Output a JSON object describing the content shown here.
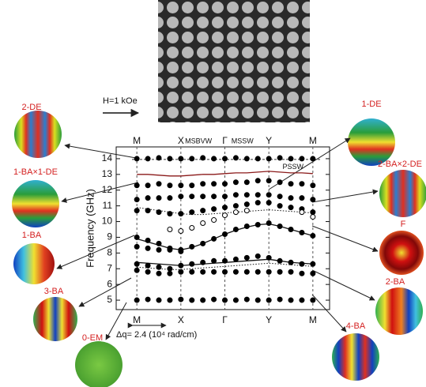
{
  "chart_data": {
    "type": "scatter",
    "y_label": "Frequency (GHz)",
    "field_label": "H=1 kOe",
    "scale_label": "Δq= 2.4 (10⁴ rad/cm)",
    "annotation": {
      "text": "PSSW",
      "x": 3.55,
      "y": 13.45
    },
    "xlim": [
      -0.47,
      4.38
    ],
    "ylim": [
      4.4,
      14.75
    ],
    "yticks": [
      5,
      6,
      7,
      8,
      9,
      10,
      11,
      12,
      13,
      14
    ],
    "xticks": [
      {
        "value": 0,
        "label": "M"
      },
      {
        "value": 1,
        "label": "X"
      },
      {
        "value": 2,
        "label": "Γ"
      },
      {
        "value": 3,
        "label": "Y"
      },
      {
        "value": 4,
        "label": "M"
      }
    ],
    "top_labels": [
      {
        "value": 0,
        "label": "M"
      },
      {
        "value": 1,
        "label": "X"
      },
      {
        "value": 1.4,
        "label": "MSBVW"
      },
      {
        "value": 2,
        "label": "Γ"
      },
      {
        "value": 2.4,
        "label": "MSSW"
      },
      {
        "value": 3,
        "label": "Y"
      },
      {
        "value": 4,
        "label": "M"
      }
    ],
    "grid": true,
    "x": [
      0,
      0.25,
      0.5,
      0.75,
      1,
      1.25,
      1.5,
      1.75,
      2,
      2.25,
      2.5,
      2.75,
      3,
      3.25,
      3.5,
      3.75,
      4
    ],
    "series": [
      {
        "color": "#8b1a1a",
        "style": "solid",
        "values": [
          13.0,
          13.0,
          12.95,
          12.9,
          12.9,
          12.95,
          13.0,
          13.0,
          13.05,
          13.1,
          13.1,
          13.15,
          13.2,
          13.15,
          13.1,
          13.1,
          13.05
        ]
      },
      {
        "color": "#111111",
        "style": "solid",
        "values": [
          8.9,
          8.7,
          8.5,
          8.3,
          8.2,
          8.35,
          8.6,
          8.9,
          9.2,
          9.45,
          9.65,
          9.8,
          9.85,
          9.7,
          9.5,
          9.3,
          9.1
        ]
      },
      {
        "color": "#111111",
        "style": "solid",
        "values": [
          7.4,
          7.35,
          7.3,
          7.25,
          7.2,
          7.25,
          7.3,
          7.35,
          7.4,
          7.45,
          7.5,
          7.55,
          7.6,
          7.5,
          7.4,
          7.35,
          7.3
        ]
      },
      {
        "color": "#111111",
        "style": "dotted",
        "values": [
          10.9,
          10.8,
          10.7,
          10.6,
          10.5,
          10.45,
          10.45,
          10.5,
          10.55,
          10.6,
          10.65,
          10.7,
          10.75,
          10.7,
          10.65,
          10.6,
          10.55
        ]
      },
      {
        "color": "#111111",
        "style": "dotted",
        "values": [
          7.1,
          7.05,
          7.0,
          6.95,
          6.95,
          7.0,
          7.05,
          7.1,
          7.15,
          7.2,
          7.25,
          7.3,
          7.35,
          7.3,
          7.25,
          7.2,
          7.15
        ]
      },
      {
        "color": "#000000",
        "marker": "filled",
        "values": [
          5.0,
          5.05,
          5.0,
          5.0,
          5.05,
          5.0,
          5.0,
          5.05,
          5.0,
          5.0,
          5.05,
          5.0,
          5.0,
          5.05,
          5.0,
          5.0,
          5.0
        ]
      },
      {
        "color": "#000000",
        "marker": "filled",
        "values": [
          6.9,
          6.8,
          6.7,
          6.7,
          6.8,
          6.8,
          6.8,
          6.8,
          6.8,
          6.8,
          6.8,
          6.8,
          6.8,
          6.8,
          6.8,
          6.7,
          6.7
        ]
      },
      {
        "color": "#000000",
        "marker": "filled",
        "values": [
          7.3,
          7.2,
          7.1,
          7.0,
          7.2,
          7.3,
          7.4,
          7.5,
          7.5,
          7.6,
          7.7,
          7.8,
          7.7,
          7.5,
          7.4,
          7.3,
          7.3
        ]
      },
      {
        "color": "#000000",
        "marker": "filled",
        "values": [
          8.4,
          8.3,
          8.2,
          8.2,
          8.2,
          8.4,
          8.6,
          8.9,
          9.2,
          9.5,
          9.7,
          9.8,
          9.9,
          9.7,
          9.5,
          9.3,
          9.1
        ]
      },
      {
        "color": "#000000",
        "marker": "filled",
        "values": [
          9.0,
          8.8,
          8.6,
          8.3,
          8.1,
          null,
          null,
          null,
          null,
          null,
          null,
          null,
          null,
          null,
          null,
          null,
          null
        ]
      },
      {
        "color": "#000000",
        "marker": "filled",
        "values": [
          10.7,
          10.7,
          10.6,
          10.5,
          10.5,
          10.6,
          10.7,
          10.8,
          10.9,
          11.0,
          11.1,
          11.2,
          11.2,
          11.0,
          10.9,
          10.8,
          10.6
        ]
      },
      {
        "color": "#000000",
        "marker": "filled",
        "values": [
          11.4,
          11.5,
          11.5,
          11.5,
          11.6,
          11.6,
          11.6,
          11.6,
          11.6,
          11.7,
          11.7,
          11.7,
          11.7,
          11.6,
          11.5,
          11.5,
          11.4
        ]
      },
      {
        "color": "#000000",
        "marker": "filled",
        "values": [
          12.3,
          12.3,
          12.4,
          12.3,
          12.3,
          12.3,
          12.4,
          12.4,
          12.4,
          12.5,
          12.5,
          12.6,
          12.6,
          12.5,
          12.4,
          12.4,
          12.3
        ]
      },
      {
        "color": "#000000",
        "marker": "filled",
        "values": [
          14.0,
          14.0,
          14.05,
          14.0,
          14.0,
          14.0,
          14.05,
          14.0,
          14.0,
          14.05,
          14.0,
          14.0,
          14.0,
          14.05,
          14.0,
          14.0,
          14.0
        ]
      },
      {
        "color": "#000000",
        "marker": "open",
        "values": [
          null,
          null,
          null,
          9.5,
          9.4,
          9.6,
          9.9,
          10.1,
          10.4,
          10.6,
          10.7,
          null,
          null,
          null,
          null,
          10.6,
          10.3
        ]
      }
    ]
  },
  "modes": [
    {
      "label": "2-DE"
    },
    {
      "label": "1-BA×1-DE"
    },
    {
      "label": "1-BA"
    },
    {
      "label": "3-BA"
    },
    {
      "label": "0-EM"
    },
    {
      "label": "1-DE"
    },
    {
      "label": "2-BA×2-DE"
    },
    {
      "label": "F"
    },
    {
      "label": "2-BA"
    },
    {
      "label": "4-BA"
    }
  ]
}
